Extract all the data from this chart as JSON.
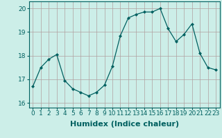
{
  "x": [
    0,
    1,
    2,
    3,
    4,
    5,
    6,
    7,
    8,
    9,
    10,
    11,
    12,
    13,
    14,
    15,
    16,
    17,
    18,
    19,
    20,
    21,
    22,
    23
  ],
  "y": [
    16.7,
    17.5,
    17.85,
    18.05,
    16.95,
    16.6,
    16.45,
    16.3,
    16.45,
    16.75,
    17.55,
    18.85,
    19.6,
    19.75,
    19.85,
    19.85,
    20.0,
    19.15,
    18.6,
    18.9,
    19.35,
    18.1,
    17.5,
    17.4
  ],
  "xlim": [
    -0.5,
    23.5
  ],
  "ylim": [
    15.8,
    20.3
  ],
  "yticks": [
    16,
    17,
    18,
    19,
    20
  ],
  "xticks": [
    0,
    1,
    2,
    3,
    4,
    5,
    6,
    7,
    8,
    9,
    10,
    11,
    12,
    13,
    14,
    15,
    16,
    17,
    18,
    19,
    20,
    21,
    22,
    23
  ],
  "xlabel": "Humidex (Indice chaleur)",
  "line_color": "#006060",
  "marker": "D",
  "marker_size": 2.0,
  "bg_color": "#cceee8",
  "grid_color": "#b0a0a0",
  "tick_label_fontsize": 6.5,
  "xlabel_fontsize": 8
}
